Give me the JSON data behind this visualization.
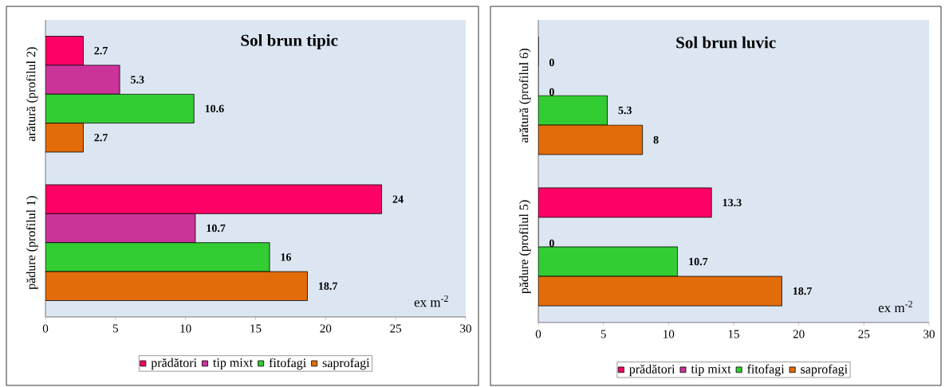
{
  "chart_data": [
    {
      "type": "bar",
      "orientation": "horizontal",
      "title": "Sol brun tipic",
      "categories": [
        "arătură (profilul 2)",
        "pădure (profilul 1)"
      ],
      "series": [
        {
          "name": "prădători",
          "color": "#ff0066",
          "values": [
            2.7,
            24
          ]
        },
        {
          "name": "tip mixt",
          "color": "#cc3399",
          "values": [
            5.3,
            10.7
          ]
        },
        {
          "name": "fitofagi",
          "color": "#33cc33",
          "values": [
            10.6,
            16
          ]
        },
        {
          "name": "saprofagi",
          "color": "#e36c0a",
          "values": [
            2.7,
            18.7
          ]
        }
      ],
      "xlim": [
        0,
        30
      ],
      "xticks": [
        0,
        5,
        10,
        15,
        20,
        25,
        30
      ],
      "data_labels": true,
      "legend": "bottom",
      "annotations": [
        "ex m$^{-2}$"
      ]
    },
    {
      "type": "bar",
      "orientation": "horizontal",
      "title": "Sol brun luvic",
      "categories": [
        "arătură (profilul 6)",
        "pădure (profilul 5)"
      ],
      "series": [
        {
          "name": "prădători",
          "color": "#ff0066",
          "values": [
            0,
            13.3
          ]
        },
        {
          "name": "tip mixt",
          "color": "#cc3399",
          "values": [
            0,
            0
          ]
        },
        {
          "name": "fitofagi",
          "color": "#33cc33",
          "values": [
            5.3,
            10.7
          ]
        },
        {
          "name": "saprofagi",
          "color": "#e36c0a",
          "values": [
            8,
            18.7
          ]
        }
      ],
      "xlim": [
        0,
        30
      ],
      "xticks": [
        0,
        5,
        10,
        15,
        20,
        25,
        30
      ],
      "data_labels": true,
      "legend": "bottom",
      "annotations": [
        "ex m$^{-2}$"
      ]
    }
  ]
}
